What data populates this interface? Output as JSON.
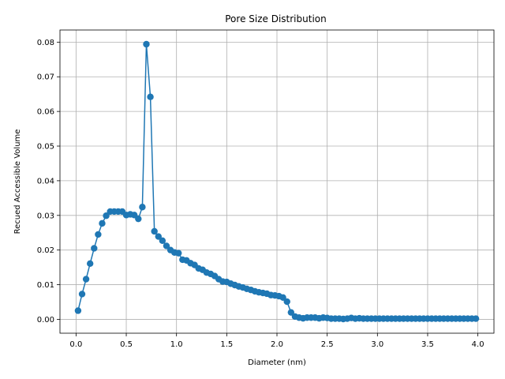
{
  "chart_data": {
    "type": "line",
    "title": "Pore Size Distribution",
    "xlabel": "Diameter (nm)",
    "ylabel": "Recued Accessible Volume",
    "xlim": [
      -0.16,
      4.16
    ],
    "ylim": [
      -0.004,
      0.0835
    ],
    "grid": true,
    "xticks": [
      "0.0",
      "0.5",
      "1.0",
      "1.5",
      "2.0",
      "2.5",
      "3.0",
      "3.5",
      "4.0"
    ],
    "xtick_values": [
      0,
      0.5,
      1.0,
      1.5,
      2.0,
      2.5,
      3.0,
      3.5,
      4.0
    ],
    "yticks": [
      "0.00",
      "0.01",
      "0.02",
      "0.03",
      "0.04",
      "0.05",
      "0.06",
      "0.07",
      "0.08"
    ],
    "ytick_values": [
      0,
      0.01,
      0.02,
      0.03,
      0.04,
      0.05,
      0.06,
      0.07,
      0.08
    ],
    "colors": {
      "series": "#1f77b4"
    },
    "series": [
      {
        "x": [
          0.02,
          0.06,
          0.1,
          0.14,
          0.18,
          0.22,
          0.26,
          0.3,
          0.34,
          0.38,
          0.42,
          0.46,
          0.5,
          0.54,
          0.58,
          0.62,
          0.66,
          0.7,
          0.74,
          0.78,
          0.82,
          0.86,
          0.9,
          0.94,
          0.98,
          1.02,
          1.06,
          1.1,
          1.14,
          1.18,
          1.22,
          1.26,
          1.3,
          1.34,
          1.38,
          1.42,
          1.46,
          1.5,
          1.54,
          1.58,
          1.62,
          1.66,
          1.7,
          1.74,
          1.78,
          1.82,
          1.86,
          1.9,
          1.94,
          1.98,
          2.02,
          2.06,
          2.1,
          2.14,
          2.18,
          2.22,
          2.26,
          2.3,
          2.34,
          2.38,
          2.42,
          2.46,
          2.5,
          2.54,
          2.58,
          2.62,
          2.66,
          2.7,
          2.74,
          2.78,
          2.82,
          2.86,
          2.9,
          2.94,
          2.98,
          3.02,
          3.06,
          3.1,
          3.14,
          3.18,
          3.22,
          3.26,
          3.3,
          3.34,
          3.38,
          3.42,
          3.46,
          3.5,
          3.54,
          3.58,
          3.62,
          3.66,
          3.7,
          3.74,
          3.78,
          3.82,
          3.86,
          3.9,
          3.94,
          3.98
        ],
        "y": [
          0.0025,
          0.0073,
          0.0116,
          0.0161,
          0.0205,
          0.0245,
          0.0277,
          0.0299,
          0.0311,
          0.0311,
          0.0311,
          0.0311,
          0.0301,
          0.0303,
          0.0301,
          0.029,
          0.0324,
          0.0794,
          0.0642,
          0.0254,
          0.0239,
          0.0227,
          0.0212,
          0.02,
          0.0193,
          0.0191,
          0.0172,
          0.017,
          0.0162,
          0.0157,
          0.0147,
          0.0143,
          0.0135,
          0.0131,
          0.0125,
          0.0116,
          0.0109,
          0.0108,
          0.0103,
          0.0099,
          0.0095,
          0.0092,
          0.0088,
          0.0085,
          0.0081,
          0.0078,
          0.0076,
          0.0074,
          0.007,
          0.0069,
          0.0067,
          0.0063,
          0.0051,
          0.002,
          0.0008,
          0.0005,
          0.0003,
          0.0005,
          0.0005,
          0.0005,
          0.0003,
          0.0005,
          0.0004,
          0.0002,
          0.0002,
          0.0002,
          0.0001,
          0.0002,
          0.0004,
          0.0002,
          0.0003,
          0.0002,
          0.0002,
          0.0002,
          0.0002,
          0.0002,
          0.0002,
          0.0002,
          0.0002,
          0.0002,
          0.0002,
          0.0002,
          0.0002,
          0.0002,
          0.0002,
          0.0002,
          0.0002,
          0.0002,
          0.0002,
          0.0002,
          0.0002,
          0.0002,
          0.0002,
          0.0002,
          0.0002,
          0.0002,
          0.0002,
          0.0002,
          0.0002,
          0.0002
        ]
      }
    ]
  }
}
